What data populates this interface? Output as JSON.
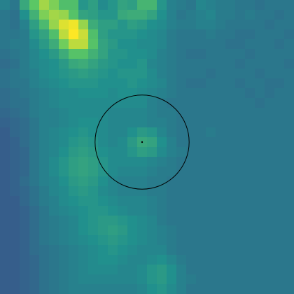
{
  "image": {
    "kind": "pixelated intensity map",
    "colormap": "viridis",
    "colormap_stops": [
      "#440154",
      "#3b528b",
      "#21908d",
      "#5dc963",
      "#fde725"
    ],
    "grid_cols": 30,
    "grid_rows": 30,
    "value_range": [
      0,
      1
    ]
  },
  "marker": {
    "shape": "circle",
    "color": "#000000",
    "center_grid": [
      14.5,
      14.5
    ],
    "radius_grid": 4.8,
    "center_dot": true
  },
  "chart_data": {
    "type": "heatmap",
    "title": "",
    "xlabel": "",
    "ylabel": "",
    "colorbar": false,
    "axes_visible": false,
    "rows": [
      [
        0.44,
        0.4,
        0.6,
        0.74,
        0.86,
        0.8,
        0.7,
        0.7,
        0.52,
        0.56,
        0.48,
        0.52,
        0.58,
        0.56,
        0.66,
        0.66,
        0.52,
        0.44,
        0.42,
        0.4,
        0.46,
        0.44,
        0.42,
        0.42,
        0.4,
        0.4,
        0.38,
        0.4,
        0.4,
        0.4
      ],
      [
        0.4,
        0.38,
        0.5,
        0.64,
        0.8,
        0.86,
        0.84,
        0.72,
        0.58,
        0.56,
        0.52,
        0.52,
        0.6,
        0.62,
        0.62,
        0.58,
        0.5,
        0.44,
        0.4,
        0.42,
        0.44,
        0.46,
        0.42,
        0.42,
        0.4,
        0.42,
        0.4,
        0.4,
        0.38,
        0.4
      ],
      [
        0.4,
        0.38,
        0.44,
        0.56,
        0.68,
        0.84,
        0.95,
        0.98,
        0.84,
        0.62,
        0.56,
        0.56,
        0.52,
        0.56,
        0.54,
        0.5,
        0.48,
        0.44,
        0.42,
        0.42,
        0.44,
        0.44,
        0.42,
        0.4,
        0.4,
        0.4,
        0.4,
        0.38,
        0.4,
        0.4
      ],
      [
        0.4,
        0.4,
        0.42,
        0.52,
        0.58,
        0.7,
        0.9,
        1.0,
        0.92,
        0.7,
        0.56,
        0.52,
        0.52,
        0.52,
        0.5,
        0.48,
        0.46,
        0.42,
        0.4,
        0.4,
        0.4,
        0.42,
        0.4,
        0.4,
        0.38,
        0.38,
        0.4,
        0.4,
        0.4,
        0.38
      ],
      [
        0.4,
        0.42,
        0.42,
        0.48,
        0.54,
        0.62,
        0.78,
        0.9,
        0.9,
        0.72,
        0.58,
        0.54,
        0.5,
        0.5,
        0.48,
        0.48,
        0.46,
        0.42,
        0.4,
        0.4,
        0.4,
        0.4,
        0.4,
        0.38,
        0.38,
        0.4,
        0.4,
        0.4,
        0.38,
        0.4
      ],
      [
        0.38,
        0.4,
        0.42,
        0.46,
        0.5,
        0.54,
        0.62,
        0.72,
        0.72,
        0.64,
        0.58,
        0.52,
        0.52,
        0.5,
        0.5,
        0.48,
        0.44,
        0.42,
        0.4,
        0.38,
        0.38,
        0.4,
        0.4,
        0.4,
        0.4,
        0.38,
        0.4,
        0.4,
        0.4,
        0.4
      ],
      [
        0.36,
        0.38,
        0.42,
        0.46,
        0.48,
        0.5,
        0.54,
        0.6,
        0.62,
        0.58,
        0.54,
        0.52,
        0.5,
        0.5,
        0.52,
        0.46,
        0.44,
        0.42,
        0.4,
        0.4,
        0.4,
        0.4,
        0.4,
        0.4,
        0.38,
        0.4,
        0.4,
        0.4,
        0.4,
        0.38
      ],
      [
        0.38,
        0.4,
        0.42,
        0.44,
        0.48,
        0.5,
        0.52,
        0.54,
        0.56,
        0.54,
        0.52,
        0.5,
        0.52,
        0.52,
        0.52,
        0.48,
        0.44,
        0.42,
        0.4,
        0.4,
        0.4,
        0.38,
        0.4,
        0.4,
        0.4,
        0.4,
        0.38,
        0.4,
        0.4,
        0.4
      ],
      [
        0.38,
        0.4,
        0.4,
        0.44,
        0.46,
        0.48,
        0.5,
        0.52,
        0.52,
        0.52,
        0.5,
        0.5,
        0.5,
        0.52,
        0.5,
        0.48,
        0.46,
        0.42,
        0.4,
        0.38,
        0.38,
        0.4,
        0.4,
        0.4,
        0.38,
        0.4,
        0.4,
        0.38,
        0.38,
        0.4
      ],
      [
        0.36,
        0.38,
        0.4,
        0.42,
        0.44,
        0.46,
        0.48,
        0.48,
        0.5,
        0.5,
        0.5,
        0.48,
        0.5,
        0.5,
        0.48,
        0.46,
        0.44,
        0.42,
        0.4,
        0.4,
        0.4,
        0.4,
        0.4,
        0.4,
        0.4,
        0.38,
        0.4,
        0.38,
        0.4,
        0.4
      ],
      [
        0.36,
        0.38,
        0.38,
        0.42,
        0.44,
        0.46,
        0.48,
        0.48,
        0.48,
        0.48,
        0.48,
        0.48,
        0.48,
        0.48,
        0.48,
        0.44,
        0.42,
        0.4,
        0.4,
        0.4,
        0.4,
        0.4,
        0.4,
        0.4,
        0.4,
        0.4,
        0.38,
        0.4,
        0.4,
        0.4
      ],
      [
        0.34,
        0.36,
        0.38,
        0.42,
        0.44,
        0.44,
        0.46,
        0.48,
        0.48,
        0.48,
        0.48,
        0.46,
        0.46,
        0.46,
        0.46,
        0.44,
        0.42,
        0.42,
        0.4,
        0.4,
        0.4,
        0.4,
        0.4,
        0.4,
        0.4,
        0.4,
        0.4,
        0.4,
        0.4,
        0.4
      ],
      [
        0.32,
        0.34,
        0.36,
        0.4,
        0.44,
        0.44,
        0.46,
        0.48,
        0.5,
        0.5,
        0.48,
        0.46,
        0.46,
        0.46,
        0.46,
        0.44,
        0.44,
        0.42,
        0.4,
        0.4,
        0.4,
        0.4,
        0.4,
        0.4,
        0.4,
        0.4,
        0.4,
        0.4,
        0.4,
        0.4
      ],
      [
        0.3,
        0.34,
        0.36,
        0.4,
        0.44,
        0.46,
        0.48,
        0.5,
        0.52,
        0.5,
        0.48,
        0.46,
        0.46,
        0.5,
        0.54,
        0.52,
        0.46,
        0.42,
        0.4,
        0.4,
        0.4,
        0.42,
        0.4,
        0.4,
        0.4,
        0.4,
        0.4,
        0.4,
        0.4,
        0.4
      ],
      [
        0.3,
        0.32,
        0.36,
        0.4,
        0.44,
        0.46,
        0.48,
        0.52,
        0.54,
        0.52,
        0.48,
        0.46,
        0.48,
        0.54,
        0.6,
        0.58,
        0.5,
        0.44,
        0.4,
        0.4,
        0.4,
        0.4,
        0.4,
        0.4,
        0.4,
        0.4,
        0.4,
        0.4,
        0.4,
        0.4
      ],
      [
        0.3,
        0.32,
        0.34,
        0.4,
        0.44,
        0.46,
        0.5,
        0.54,
        0.56,
        0.54,
        0.5,
        0.48,
        0.48,
        0.52,
        0.56,
        0.54,
        0.48,
        0.44,
        0.42,
        0.4,
        0.4,
        0.4,
        0.4,
        0.4,
        0.4,
        0.4,
        0.4,
        0.4,
        0.4,
        0.4
      ],
      [
        0.3,
        0.32,
        0.34,
        0.4,
        0.44,
        0.48,
        0.52,
        0.56,
        0.58,
        0.56,
        0.52,
        0.48,
        0.48,
        0.48,
        0.48,
        0.46,
        0.44,
        0.42,
        0.4,
        0.4,
        0.4,
        0.4,
        0.4,
        0.4,
        0.4,
        0.4,
        0.4,
        0.4,
        0.4,
        0.4
      ],
      [
        0.3,
        0.32,
        0.34,
        0.4,
        0.44,
        0.48,
        0.52,
        0.56,
        0.58,
        0.56,
        0.52,
        0.48,
        0.46,
        0.46,
        0.46,
        0.44,
        0.42,
        0.42,
        0.4,
        0.4,
        0.4,
        0.4,
        0.4,
        0.4,
        0.4,
        0.4,
        0.4,
        0.4,
        0.4,
        0.4
      ],
      [
        0.3,
        0.32,
        0.36,
        0.4,
        0.44,
        0.46,
        0.5,
        0.54,
        0.56,
        0.54,
        0.5,
        0.46,
        0.44,
        0.44,
        0.44,
        0.42,
        0.42,
        0.4,
        0.4,
        0.4,
        0.4,
        0.4,
        0.4,
        0.4,
        0.4,
        0.4,
        0.4,
        0.4,
        0.4,
        0.4
      ],
      [
        0.3,
        0.32,
        0.34,
        0.38,
        0.42,
        0.46,
        0.48,
        0.52,
        0.54,
        0.52,
        0.48,
        0.46,
        0.44,
        0.44,
        0.44,
        0.42,
        0.42,
        0.4,
        0.4,
        0.4,
        0.4,
        0.4,
        0.4,
        0.4,
        0.4,
        0.4,
        0.4,
        0.4,
        0.4,
        0.4
      ],
      [
        0.3,
        0.3,
        0.34,
        0.38,
        0.42,
        0.44,
        0.48,
        0.5,
        0.52,
        0.52,
        0.5,
        0.48,
        0.46,
        0.46,
        0.46,
        0.44,
        0.42,
        0.4,
        0.4,
        0.4,
        0.4,
        0.4,
        0.4,
        0.4,
        0.4,
        0.4,
        0.4,
        0.4,
        0.4,
        0.4
      ],
      [
        0.3,
        0.3,
        0.32,
        0.36,
        0.4,
        0.44,
        0.46,
        0.48,
        0.5,
        0.52,
        0.52,
        0.5,
        0.48,
        0.46,
        0.46,
        0.44,
        0.42,
        0.4,
        0.4,
        0.4,
        0.4,
        0.4,
        0.4,
        0.4,
        0.4,
        0.4,
        0.4,
        0.4,
        0.4,
        0.4
      ],
      [
        0.3,
        0.3,
        0.32,
        0.36,
        0.4,
        0.42,
        0.44,
        0.46,
        0.5,
        0.52,
        0.54,
        0.54,
        0.52,
        0.5,
        0.48,
        0.46,
        0.42,
        0.4,
        0.4,
        0.4,
        0.4,
        0.4,
        0.4,
        0.4,
        0.4,
        0.4,
        0.4,
        0.4,
        0.4,
        0.4
      ],
      [
        0.3,
        0.3,
        0.32,
        0.36,
        0.4,
        0.42,
        0.44,
        0.46,
        0.5,
        0.52,
        0.54,
        0.56,
        0.54,
        0.5,
        0.48,
        0.46,
        0.44,
        0.42,
        0.4,
        0.4,
        0.4,
        0.4,
        0.4,
        0.4,
        0.4,
        0.4,
        0.4,
        0.4,
        0.4,
        0.4
      ],
      [
        0.3,
        0.3,
        0.32,
        0.36,
        0.4,
        0.42,
        0.44,
        0.46,
        0.48,
        0.5,
        0.52,
        0.54,
        0.52,
        0.5,
        0.48,
        0.46,
        0.44,
        0.42,
        0.4,
        0.4,
        0.4,
        0.4,
        0.4,
        0.4,
        0.4,
        0.4,
        0.4,
        0.4,
        0.4,
        0.4
      ],
      [
        0.3,
        0.3,
        0.32,
        0.36,
        0.38,
        0.4,
        0.42,
        0.44,
        0.46,
        0.48,
        0.5,
        0.52,
        0.5,
        0.48,
        0.46,
        0.46,
        0.46,
        0.42,
        0.4,
        0.4,
        0.4,
        0.4,
        0.4,
        0.4,
        0.4,
        0.4,
        0.4,
        0.4,
        0.4,
        0.4
      ],
      [
        0.3,
        0.3,
        0.32,
        0.34,
        0.38,
        0.4,
        0.42,
        0.44,
        0.46,
        0.48,
        0.5,
        0.5,
        0.48,
        0.46,
        0.46,
        0.48,
        0.5,
        0.46,
        0.42,
        0.4,
        0.4,
        0.4,
        0.4,
        0.4,
        0.4,
        0.4,
        0.4,
        0.4,
        0.4,
        0.4
      ],
      [
        0.3,
        0.3,
        0.32,
        0.34,
        0.38,
        0.4,
        0.42,
        0.44,
        0.46,
        0.48,
        0.48,
        0.48,
        0.46,
        0.46,
        0.48,
        0.52,
        0.54,
        0.5,
        0.44,
        0.4,
        0.4,
        0.4,
        0.4,
        0.4,
        0.4,
        0.4,
        0.4,
        0.4,
        0.4,
        0.4
      ],
      [
        0.3,
        0.3,
        0.32,
        0.34,
        0.38,
        0.4,
        0.42,
        0.44,
        0.46,
        0.46,
        0.46,
        0.46,
        0.46,
        0.46,
        0.48,
        0.52,
        0.54,
        0.5,
        0.44,
        0.42,
        0.4,
        0.4,
        0.4,
        0.4,
        0.4,
        0.4,
        0.4,
        0.4,
        0.4,
        0.4
      ],
      [
        0.3,
        0.3,
        0.32,
        0.34,
        0.38,
        0.4,
        0.42,
        0.44,
        0.44,
        0.44,
        0.44,
        0.44,
        0.44,
        0.44,
        0.46,
        0.5,
        0.52,
        0.48,
        0.44,
        0.4,
        0.4,
        0.4,
        0.4,
        0.4,
        0.4,
        0.4,
        0.4,
        0.4,
        0.4,
        0.4
      ]
    ]
  }
}
